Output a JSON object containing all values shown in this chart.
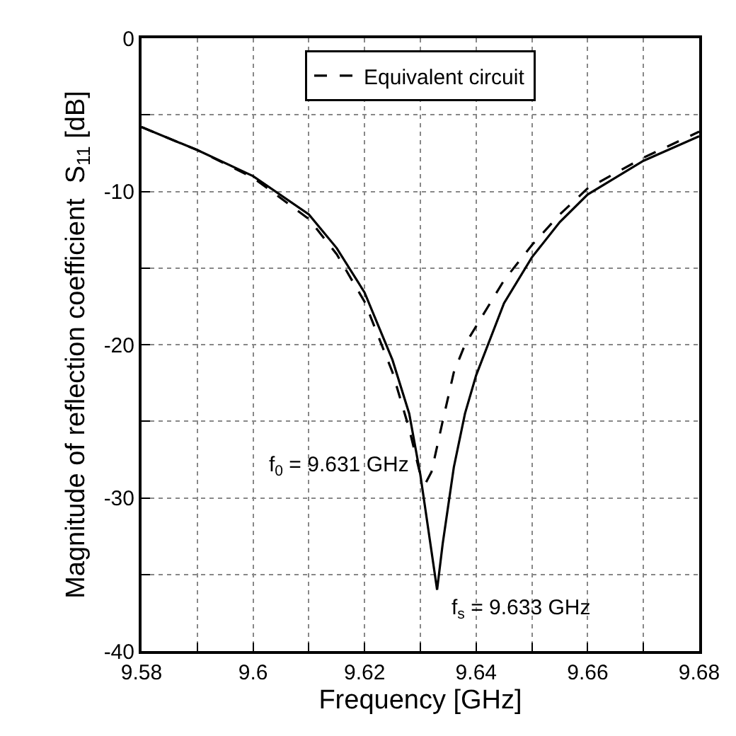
{
  "chart_data": {
    "type": "line",
    "xlabel": "Frequency [GHz]",
    "ylabel": "Magnitude of reflection coefficient  S$_{11}$ [dB]",
    "xlim": [
      9.58,
      9.68
    ],
    "ylim": [
      -40,
      0
    ],
    "xticks": [
      9.58,
      {
        "value": 9.59,
        "label": null
      },
      9.6,
      {
        "value": 9.61,
        "label": null
      },
      9.62,
      {
        "value": 9.63,
        "label": null
      },
      9.64,
      {
        "value": 9.65,
        "label": null
      },
      9.66,
      {
        "value": 9.67,
        "label": null
      },
      9.68
    ],
    "yticks": [
      -40,
      {
        "value": -35,
        "label": null
      },
      -30,
      {
        "value": -25,
        "label": null
      },
      -20,
      {
        "value": -15,
        "label": null
      },
      -10,
      {
        "value": -5,
        "label": null
      },
      0
    ],
    "grid": true,
    "legend": "top",
    "marker": "none",
    "series": [
      {
        "color": "#000000",
        "line_style": "solid",
        "x": [
          9.58,
          9.59,
          9.6,
          9.61,
          9.615,
          9.62,
          9.625,
          9.628,
          9.63,
          9.632,
          9.633,
          9.634,
          9.636,
          9.638,
          9.64,
          9.645,
          9.65,
          9.655,
          9.66,
          9.67,
          9.68
        ],
        "values": [
          -5.8,
          -7.3,
          -9.0,
          -11.5,
          -13.7,
          -16.6,
          -21,
          -24.5,
          -28.5,
          -33.5,
          -36,
          -33,
          -28,
          -24.5,
          -22,
          -17.3,
          -14.3,
          -12,
          -10.2,
          -8,
          -6.4
        ]
      },
      {
        "name": "Equivalent circuit",
        "color": "#000000",
        "line_style": "dashed",
        "x": [
          9.58,
          9.59,
          9.6,
          9.61,
          9.615,
          9.62,
          9.625,
          9.628,
          9.63,
          9.631,
          9.632,
          9.634,
          9.636,
          9.638,
          9.64,
          9.645,
          9.65,
          9.655,
          9.66,
          9.67,
          9.68
        ],
        "values": [
          -5.8,
          -7.3,
          -9.1,
          -11.8,
          -14.1,
          -17.2,
          -21.8,
          -25.5,
          -28.5,
          -29,
          -28.3,
          -25,
          -21.8,
          -20,
          -18.8,
          -15.8,
          -13.5,
          -11.5,
          -9.8,
          -7.8,
          -6.1
        ]
      }
    ],
    "annotations": [
      {
        "text": "f$_{0}$ = 9.631 GHz",
        "x": 9.631,
        "y": -29
      },
      {
        "text": "f$_{s}$ = 9.633 GHz",
        "x": 9.633,
        "y": -36
      }
    ]
  }
}
